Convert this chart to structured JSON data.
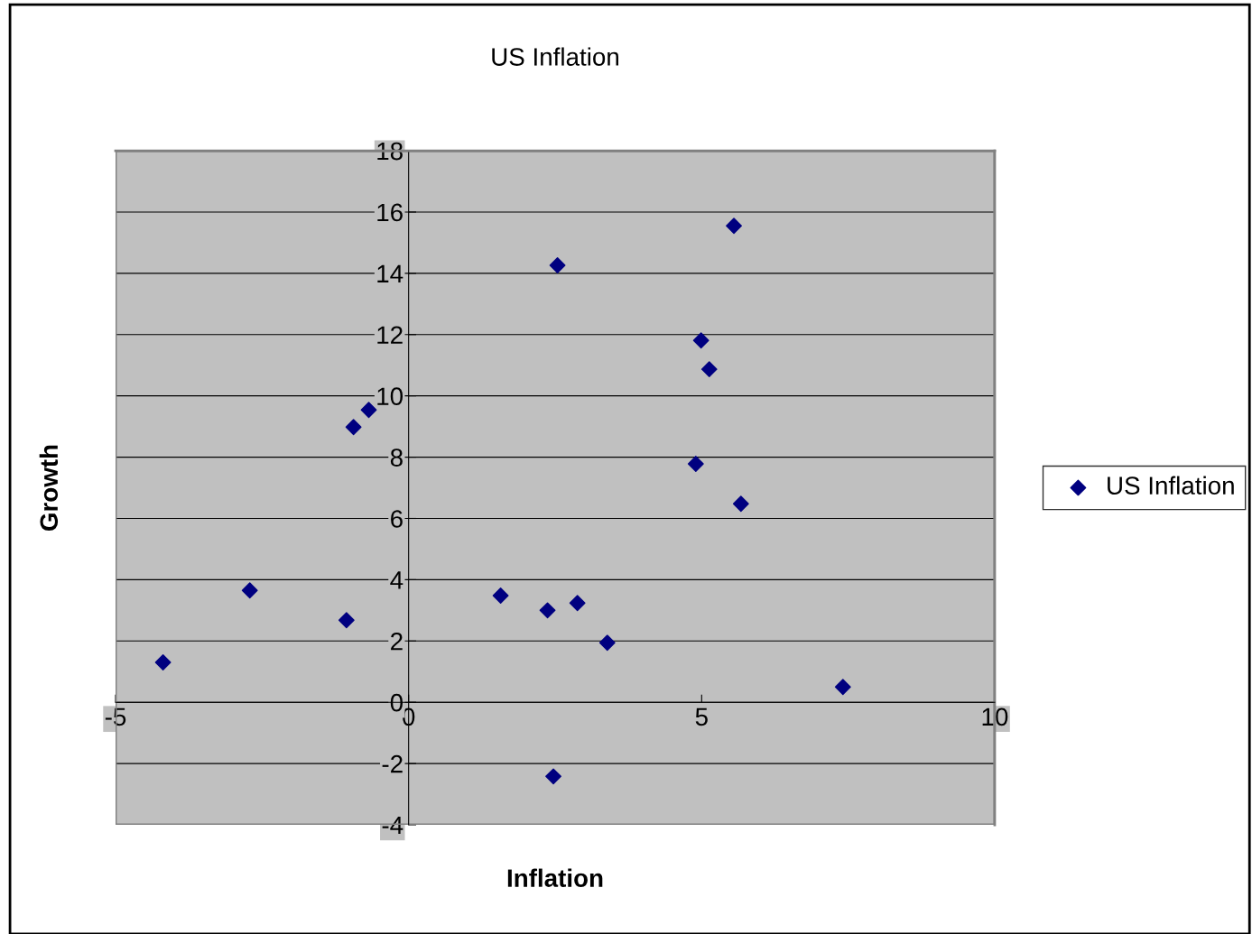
{
  "chart_data": {
    "type": "scatter",
    "title": "US Inflation",
    "xlabel": "Inflation",
    "ylabel": "Growth",
    "series": [
      {
        "name": "US Inflation",
        "color": "#000080",
        "x": [
          -4.19,
          -2.71,
          -1.06,
          -0.94,
          -0.68,
          1.57,
          2.37,
          2.54,
          2.47,
          2.88,
          3.39,
          4.9,
          4.99,
          5.13,
          5.55,
          5.67,
          7.41
        ],
        "values": [
          1.3,
          3.65,
          2.68,
          8.98,
          9.54,
          3.48,
          3.0,
          14.26,
          -2.42,
          3.24,
          1.94,
          7.78,
          11.81,
          10.87,
          15.55,
          6.48,
          0.5
        ]
      }
    ],
    "xlim": [
      -5,
      10
    ],
    "xticks": [
      -5,
      0,
      5,
      10
    ],
    "ylim": [
      -4,
      18
    ],
    "yticks": [
      -4,
      -2,
      0,
      2,
      4,
      6,
      8,
      10,
      12,
      14,
      16,
      18
    ],
    "grid": "y",
    "legend": "right",
    "marker": "diamond"
  }
}
